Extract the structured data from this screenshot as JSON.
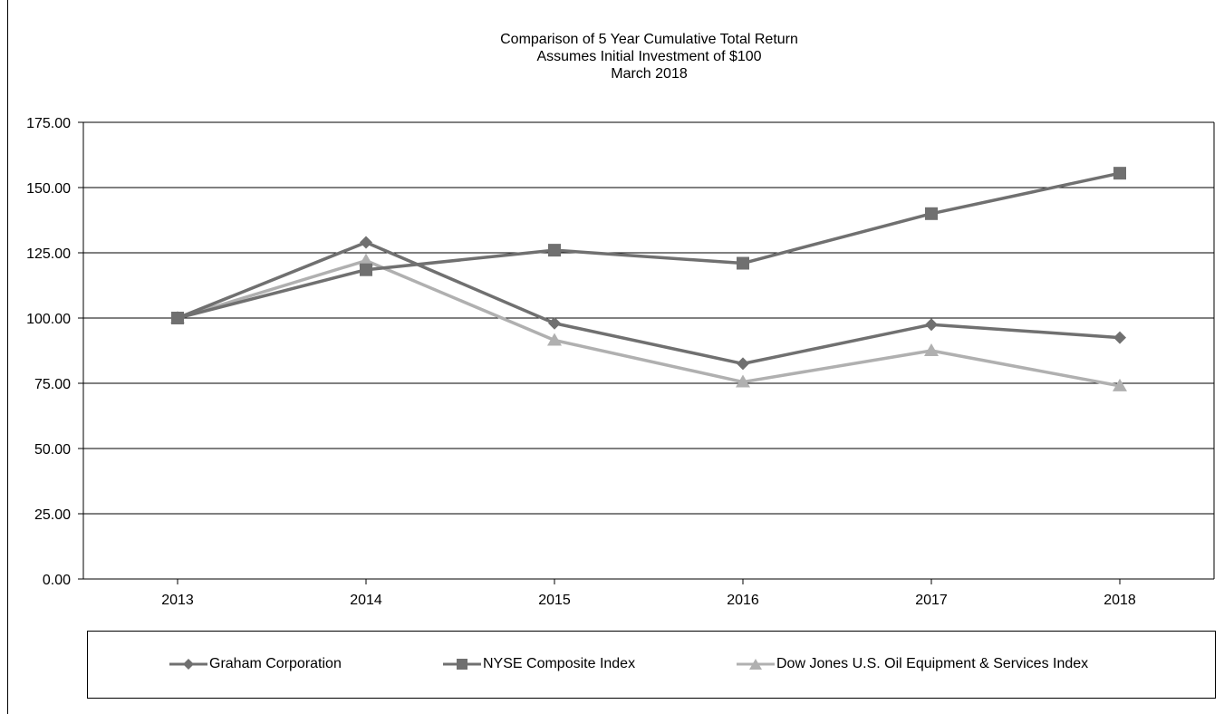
{
  "chart_data": {
    "type": "line",
    "title": [
      "Comparison of 5 Year Cumulative Total Return",
      "Assumes Initial Investment of $100",
      "March 2018"
    ],
    "categories": [
      "2013",
      "2014",
      "2015",
      "2016",
      "2017",
      "2018"
    ],
    "ylim": [
      0,
      175
    ],
    "yticks": [
      "0.00",
      "25.00",
      "50.00",
      "75.00",
      "100.00",
      "125.00",
      "150.00",
      "175.00"
    ],
    "grid": true,
    "legend_position": "bottom",
    "series": [
      {
        "name": "Graham Corporation",
        "marker": "diamond",
        "color": "#707070",
        "values": [
          100.0,
          129.0,
          98.0,
          82.5,
          97.5,
          92.5
        ]
      },
      {
        "name": "NYSE Composite Index",
        "marker": "square",
        "color": "#707070",
        "values": [
          100.0,
          118.5,
          126.0,
          121.0,
          140.0,
          155.5
        ]
      },
      {
        "name": "Dow Jones U.S. Oil Equipment & Services Index",
        "marker": "triangle",
        "color": "#b0b0b0",
        "values": [
          100.0,
          122.0,
          91.5,
          75.5,
          87.5,
          74.0
        ]
      }
    ]
  }
}
